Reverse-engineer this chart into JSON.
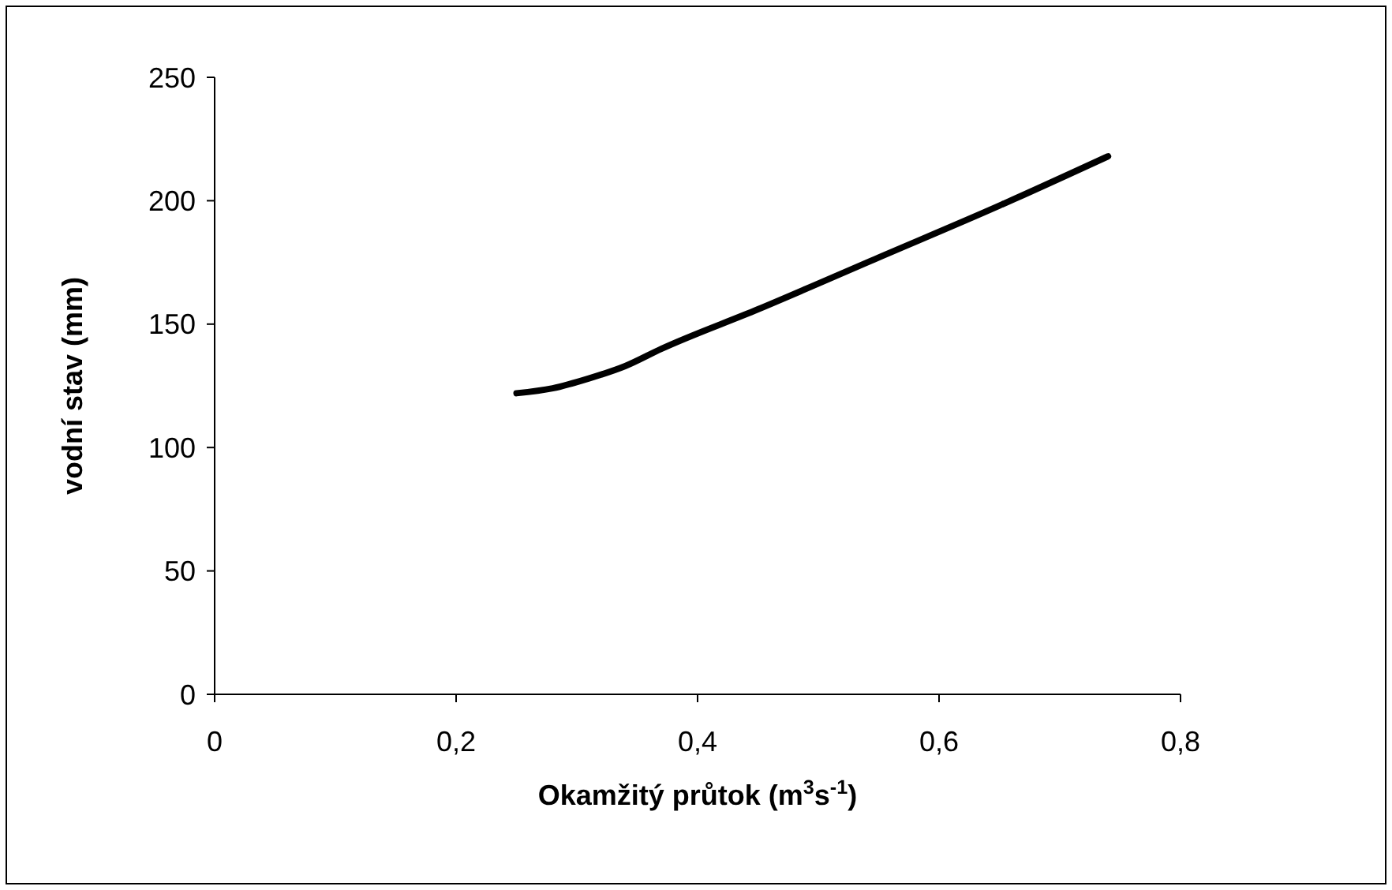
{
  "chart_data": {
    "type": "line",
    "xlabel": "Okamžitý průtok (m$^{3}$s$^{-1}$)",
    "ylabel": "vodní stav (mm)",
    "x": [
      0.25,
      0.28,
      0.31,
      0.34,
      0.37,
      0.45,
      0.55,
      0.65,
      0.74
    ],
    "series": [
      {
        "color": "#000000",
        "values": [
          122,
          124,
          128,
          133,
          140,
          156,
          177,
          198,
          218
        ]
      }
    ],
    "xlim": [
      0,
      0.8
    ],
    "xticks": [
      0,
      {
        "value": 0.2,
        "label": "0,2"
      },
      {
        "value": 0.4,
        "label": "0,4"
      },
      {
        "value": 0.6,
        "label": "0,6"
      },
      {
        "value": 0.8,
        "label": "0,8"
      }
    ],
    "ylim": [
      0,
      250
    ],
    "yticks": [
      0,
      50,
      100,
      150,
      200,
      250
    ],
    "grid": false,
    "marker": "none",
    "line_style": "solid"
  }
}
